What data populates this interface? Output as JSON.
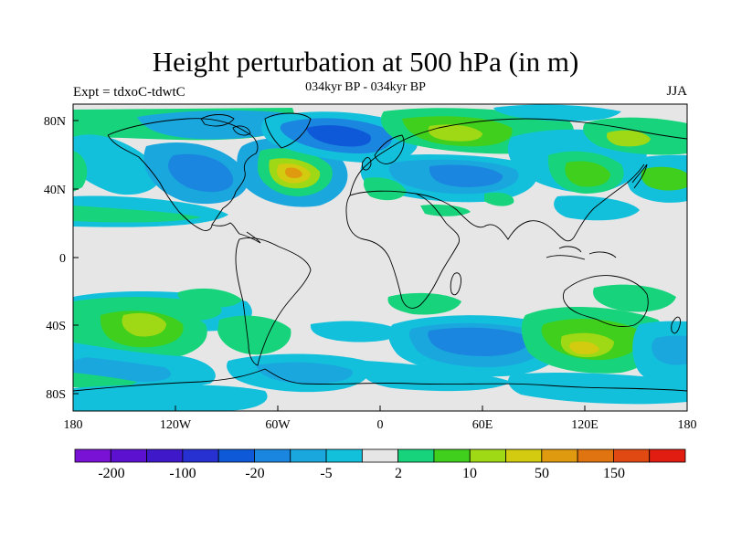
{
  "title": "Height perturbation at 500 hPa (in m)",
  "subtitle": "034kyr BP - 034kyr BP",
  "experiment": "Expt = tdxoC-tdwtC",
  "season": "JJA",
  "lat_ticks": [
    "80N",
    "40N",
    "0",
    "40S",
    "80S"
  ],
  "lon_ticks": [
    "180",
    "120W",
    "60W",
    "0",
    "60E",
    "120E",
    "180"
  ],
  "colorbar": {
    "colors": [
      "#7a12d6",
      "#5c10d0",
      "#3f19c9",
      "#2731d2",
      "#0d59d8",
      "#1b86df",
      "#1aa7de",
      "#12c0dc",
      "#e6e6e6",
      "#17d47c",
      "#3fcf1c",
      "#9fd814",
      "#d2cb10",
      "#e09a10",
      "#e07411",
      "#e04a12",
      "#e01d10"
    ],
    "labels": [
      "-200",
      "-100",
      "-20",
      "-5",
      "2",
      "10",
      "50",
      "150"
    ]
  }
}
